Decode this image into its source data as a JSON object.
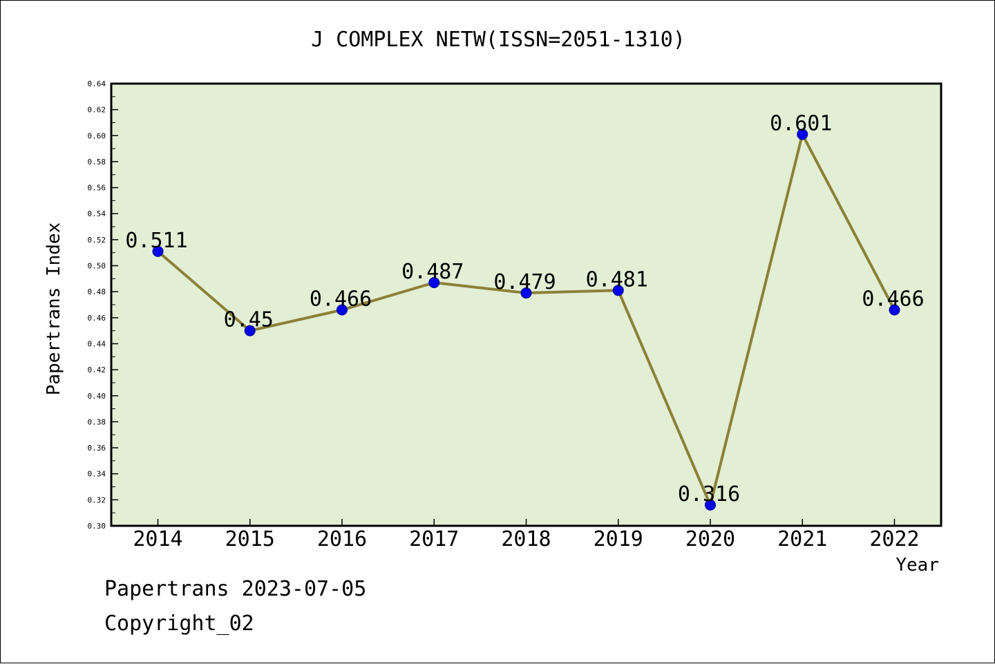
{
  "chart_data": {
    "type": "line",
    "title": "J COMPLEX NETW(ISSN=2051-1310)",
    "xlabel": "Year",
    "ylabel": "Papertrans Index",
    "categories": [
      "2014",
      "2015",
      "2016",
      "2017",
      "2018",
      "2019",
      "2020",
      "2021",
      "2022"
    ],
    "series": [
      {
        "values": [
          0.511,
          0.45,
          0.466,
          0.487,
          0.479,
          0.481,
          0.316,
          0.601,
          0.466
        ],
        "labels": [
          "0.511",
          "0.45",
          "0.466",
          "0.487",
          "0.479",
          "0.481",
          "0.316",
          "0.601",
          "0.466"
        ]
      }
    ],
    "ylim": [
      0.3,
      0.64
    ],
    "yticks": [
      "0.30",
      "0.32",
      "0.34",
      "0.36",
      "0.38",
      "0.40",
      "0.42",
      "0.44",
      "0.46",
      "0.48",
      "0.50",
      "0.52",
      "0.54",
      "0.56",
      "0.58",
      "0.60",
      "0.62",
      "0.64"
    ],
    "grid": false,
    "colors": {
      "plot_background": "#e2efd5",
      "line": "#8b8037",
      "marker": "#0000ee",
      "marker_edge": "#00008b"
    }
  },
  "footer": {
    "line1": "Papertrans 2023-07-05",
    "line2": "Copyright_02"
  }
}
